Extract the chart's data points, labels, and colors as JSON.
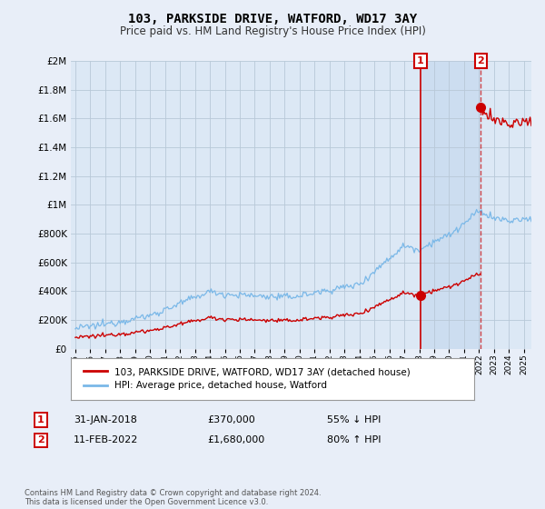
{
  "title": "103, PARKSIDE DRIVE, WATFORD, WD17 3AY",
  "subtitle": "Price paid vs. HM Land Registry's House Price Index (HPI)",
  "hpi_label": "HPI: Average price, detached house, Watford",
  "price_label": "103, PARKSIDE DRIVE, WATFORD, WD17 3AY (detached house)",
  "footer": "Contains HM Land Registry data © Crown copyright and database right 2024.\nThis data is licensed under the Open Government Licence v3.0.",
  "annotation1_date": "31-JAN-2018",
  "annotation1_price": "£370,000",
  "annotation1_hpi": "55% ↓ HPI",
  "annotation2_date": "11-FEB-2022",
  "annotation2_price": "£1,680,000",
  "annotation2_hpi": "80% ↑ HPI",
  "hpi_color": "#7ab8e8",
  "price_color": "#cc0000",
  "annotation_color": "#cc0000",
  "background_color": "#e8eef8",
  "plot_bg_color": "#dce8f5",
  "shade_color": "#ccddf0",
  "ylim": [
    0,
    2000000
  ],
  "yticks": [
    0,
    200000,
    400000,
    600000,
    800000,
    1000000,
    1200000,
    1400000,
    1600000,
    1800000,
    2000000
  ],
  "sale1_year": 2018.08,
  "sale1_price": 370000,
  "sale2_year": 2022.12,
  "sale2_price": 1680000
}
